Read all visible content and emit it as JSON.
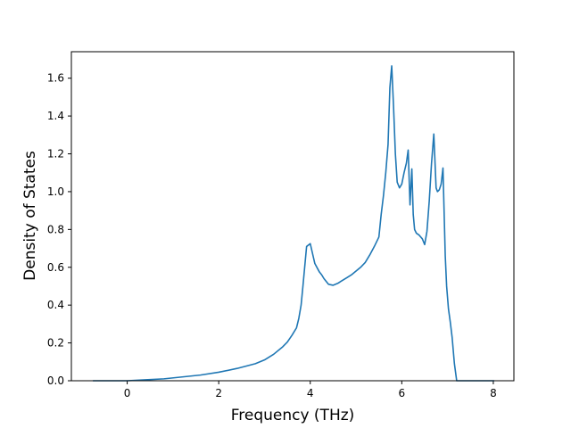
{
  "chart_data": {
    "type": "line",
    "title": "",
    "xlabel": "Frequency (THz)",
    "ylabel": "Density of States",
    "xlim": [
      -1.22,
      8.45
    ],
    "ylim": [
      0.0,
      1.74
    ],
    "xticks": [
      0,
      2,
      4,
      6,
      8
    ],
    "yticks": [
      0.0,
      0.2,
      0.4,
      0.6,
      0.8,
      1.0,
      1.2,
      1.4,
      1.6
    ],
    "xtick_labels": [
      "0",
      "2",
      "4",
      "6",
      "8"
    ],
    "ytick_labels": [
      "0.0",
      "0.2",
      "0.4",
      "0.6",
      "0.8",
      "1.0",
      "1.2",
      "1.4",
      "1.6"
    ],
    "grid": false,
    "line_color": "#1f77b4",
    "series": [
      {
        "x": [
          -0.75,
          -0.4,
          0.0,
          0.4,
          0.8,
          1.2,
          1.6,
          2.0,
          2.4,
          2.8,
          3.0,
          3.2,
          3.4,
          3.5,
          3.6,
          3.7,
          3.75,
          3.8,
          3.84,
          3.92,
          4.0,
          4.1,
          4.2,
          4.25,
          4.3,
          4.4,
          4.5,
          4.6,
          4.7,
          4.8,
          4.9,
          5.0,
          5.1,
          5.2,
          5.3,
          5.4,
          5.5,
          5.55,
          5.6,
          5.65,
          5.7,
          5.74,
          5.78,
          5.82,
          5.86,
          5.9,
          5.95,
          6.0,
          6.05,
          6.1,
          6.14,
          6.18,
          6.22,
          6.25,
          6.28,
          6.32,
          6.38,
          6.45,
          6.5,
          6.55,
          6.6,
          6.65,
          6.7,
          6.75,
          6.78,
          6.82,
          6.86,
          6.9,
          6.95,
          6.98,
          7.02,
          7.06,
          7.1,
          7.15,
          7.2,
          7.24,
          7.28,
          7.32,
          7.6,
          7.8,
          8.02
        ],
        "y": [
          0.0,
          0.0,
          0.0,
          0.005,
          0.01,
          0.02,
          0.03,
          0.045,
          0.065,
          0.09,
          0.11,
          0.14,
          0.18,
          0.205,
          0.24,
          0.28,
          0.33,
          0.4,
          0.5,
          0.71,
          0.725,
          0.62,
          0.575,
          0.56,
          0.54,
          0.51,
          0.505,
          0.515,
          0.53,
          0.545,
          0.56,
          0.58,
          0.6,
          0.625,
          0.665,
          0.71,
          0.76,
          0.88,
          0.98,
          1.1,
          1.25,
          1.55,
          1.665,
          1.45,
          1.2,
          1.05,
          1.02,
          1.04,
          1.1,
          1.15,
          1.22,
          0.93,
          1.12,
          0.88,
          0.8,
          0.78,
          0.77,
          0.75,
          0.72,
          0.79,
          0.95,
          1.15,
          1.305,
          1.02,
          1.0,
          1.01,
          1.04,
          1.125,
          0.66,
          0.5,
          0.38,
          0.31,
          0.23,
          0.09,
          0.0,
          0.0,
          0.0,
          0.0,
          0.0,
          0.0,
          0.0
        ]
      }
    ]
  }
}
